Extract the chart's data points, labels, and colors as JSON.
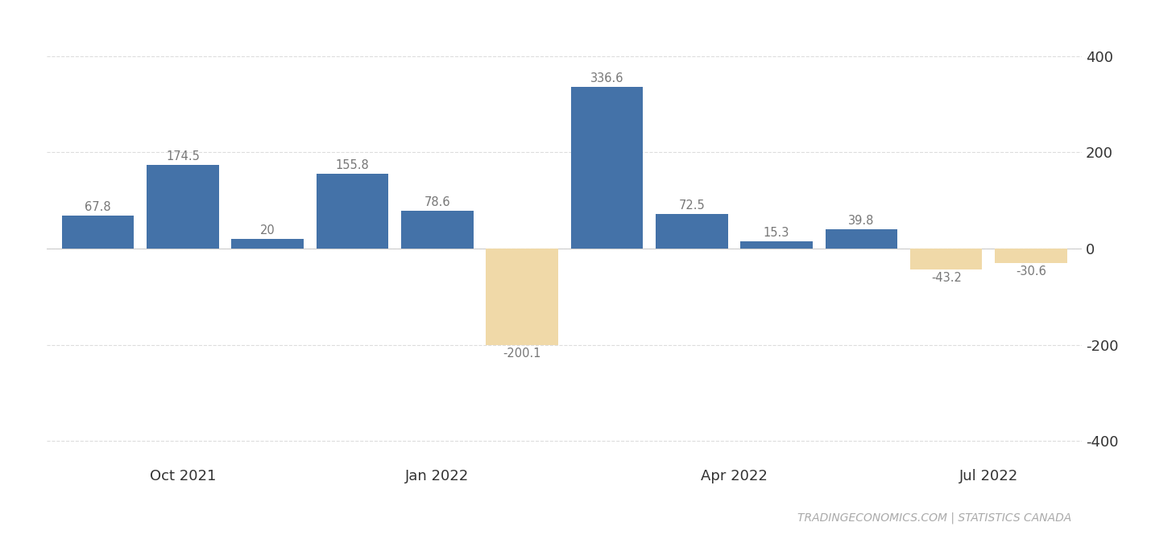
{
  "values": [
    67.8,
    174.5,
    20.0,
    155.8,
    78.6,
    -200.1,
    336.6,
    72.5,
    15.3,
    39.8,
    -43.2,
    -30.6
  ],
  "labels": [
    "67.8",
    "174.5",
    "20",
    "155.8",
    "78.6",
    "-200.1",
    "336.6",
    "72.5",
    "15.3",
    "39.8",
    "-43.2",
    "-30.6"
  ],
  "x_positions": [
    0,
    1,
    2,
    3,
    4,
    5,
    6,
    7,
    8,
    9,
    10,
    11
  ],
  "bar_colors": [
    "#4472a8",
    "#4472a8",
    "#4472a8",
    "#4472a8",
    "#4472a8",
    "#f0d9a8",
    "#4472a8",
    "#4472a8",
    "#4472a8",
    "#4472a8",
    "#f0d9a8",
    "#f0d9a8"
  ],
  "xtick_positions": [
    1.0,
    4.0,
    7.5,
    10.5
  ],
  "xtick_labels": [
    "Oct 2021",
    "Jan 2022",
    "Apr 2022",
    "Jul 2022"
  ],
  "ytick_positions": [
    -400,
    -200,
    0,
    200,
    400
  ],
  "ytick_labels": [
    "-400",
    "-200",
    "0",
    "200",
    "400"
  ],
  "ylim": [
    -450,
    460
  ],
  "xlim": [
    -0.6,
    11.6
  ],
  "bar_width": 0.85,
  "watermark": "TRADINGECONOMICS.COM | STATISTICS CANADA",
  "watermark_color": "#aaaaaa",
  "background_color": "#ffffff",
  "grid_color": "#dddddd",
  "label_color": "#777777",
  "axis_label_color": "#333333"
}
